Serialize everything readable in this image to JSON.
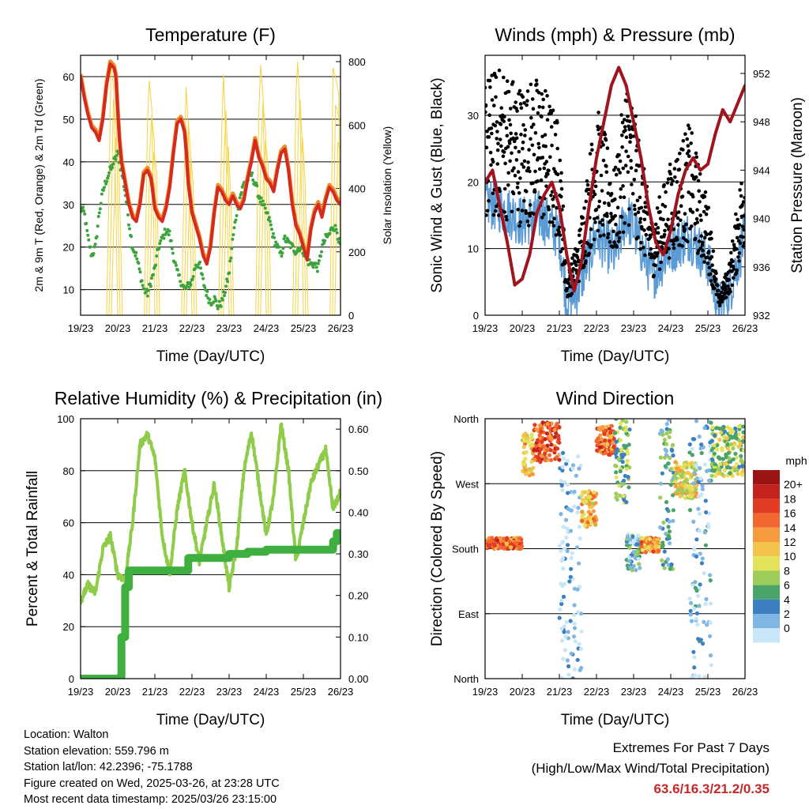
{
  "chart_data": [
    {
      "type": "line",
      "title": "Temperature (F)",
      "xlabel": "Time (Day/UTC)",
      "ylabel": "2m & 9m T (Red, Orange) & 2m Td (Green)",
      "y2label": "Solar Insolation (Yellow)",
      "x_ticks": [
        "19/23",
        "20/23",
        "21/23",
        "22/23",
        "23/23",
        "24/23",
        "25/23",
        "26/23"
      ],
      "ylim": [
        4,
        65
      ],
      "y_ticks": [
        10,
        20,
        30,
        40,
        50,
        60
      ],
      "y2lim": [
        0,
        820
      ],
      "y2_ticks": [
        0,
        200,
        400,
        600,
        800
      ],
      "colors": {
        "temp2m": "#d42a20",
        "temp9m": "#f08a2a",
        "dewpoint": "#3da33d",
        "solar": "#f5d442"
      },
      "series": [
        {
          "name": "2m T",
          "axis": "left",
          "x": [
            0,
            0.1,
            0.2,
            0.3,
            0.4,
            0.5,
            0.6,
            0.7,
            0.8,
            0.9,
            0.95,
            1.0,
            1.05,
            1.1,
            1.2,
            1.3,
            1.4,
            1.5,
            1.6,
            1.7,
            1.8,
            1.9,
            2.0,
            2.1,
            2.2,
            2.3,
            2.4,
            2.5,
            2.6,
            2.7,
            2.8,
            2.85,
            2.9,
            3.0,
            3.1,
            3.2,
            3.3,
            3.4,
            3.5,
            3.6,
            3.7,
            3.8,
            3.9,
            4.0,
            4.1,
            4.2,
            4.3,
            4.4,
            4.5,
            4.6,
            4.7,
            4.8,
            4.9,
            5.0,
            5.1,
            5.2,
            5.3,
            5.4,
            5.5,
            5.6,
            5.7,
            5.8,
            5.9,
            6.0,
            6.1,
            6.2,
            6.3,
            6.4,
            6.5,
            6.6,
            6.7,
            6.8,
            6.9,
            7.0
          ],
          "values": [
            60,
            55,
            51,
            48,
            47,
            45,
            50,
            58,
            63,
            62,
            60,
            52,
            45,
            40,
            35,
            30,
            27,
            26,
            30,
            37,
            38,
            36,
            29,
            27,
            26,
            29,
            34,
            42,
            49,
            50,
            47,
            42,
            35,
            28,
            25,
            22,
            18,
            16,
            20,
            28,
            34,
            33,
            31,
            30,
            32,
            30,
            29,
            31,
            36,
            40,
            45,
            41,
            39,
            36,
            35,
            33,
            38,
            42,
            43,
            38,
            30,
            25,
            23,
            20,
            17,
            24,
            28,
            30,
            27,
            31,
            34,
            33,
            31,
            30
          ]
        },
        {
          "name": "Td",
          "axis": "left",
          "x": [
            0,
            0.1,
            0.2,
            0.3,
            0.4,
            0.5,
            0.6,
            0.7,
            0.8,
            0.9,
            1.0,
            1.1,
            1.2,
            1.3,
            1.4,
            1.5,
            1.6,
            1.7,
            1.8,
            1.9,
            2.0,
            2.1,
            2.2,
            2.3,
            2.4,
            2.5,
            2.6,
            2.7,
            2.8,
            2.9,
            3.0,
            3.1,
            3.2,
            3.3,
            3.4,
            3.5,
            3.6,
            3.7,
            3.8,
            3.9,
            4.0,
            4.1,
            4.2,
            4.3,
            4.4,
            4.5,
            4.6,
            4.7,
            4.8,
            4.9,
            5.0,
            5.1,
            5.2,
            5.3,
            5.4,
            5.5,
            5.6,
            5.7,
            5.8,
            5.9,
            6.0,
            6.1,
            6.2,
            6.3,
            6.4,
            6.5,
            6.6,
            6.7,
            6.8,
            6.9,
            7.0
          ],
          "values": [
            29,
            28,
            22,
            18,
            20,
            28,
            33,
            36,
            38,
            40,
            42,
            38,
            33,
            26,
            20,
            18,
            14,
            10,
            9,
            12,
            15,
            20,
            22,
            24,
            23,
            18,
            14,
            12,
            10,
            11,
            12,
            16,
            16,
            12,
            9,
            7,
            8,
            6,
            7,
            10,
            14,
            22,
            28,
            32,
            35,
            36,
            37,
            35,
            32,
            30,
            28,
            26,
            22,
            20,
            18,
            22,
            21,
            20,
            19,
            20,
            19,
            17,
            16,
            16,
            15,
            20,
            22,
            23,
            25,
            24,
            20
          ]
        },
        {
          "name": "Solar",
          "axis": "right",
          "x": [
            0.7,
            0.78,
            0.82,
            0.9,
            1.0,
            1.72,
            1.8,
            1.85,
            1.92,
            2.0,
            2.72,
            2.8,
            2.84,
            2.9,
            3.0,
            3.72,
            3.8,
            3.85,
            3.92,
            4.0,
            4.72,
            4.8,
            4.85,
            4.92,
            5.0,
            5.72,
            5.8,
            5.85,
            5.92,
            6.0,
            6.72,
            6.8,
            6.85,
            6.95,
            7.0
          ],
          "values": [
            0,
            500,
            800,
            700,
            0,
            0,
            600,
            740,
            650,
            0,
            0,
            500,
            720,
            600,
            0,
            0,
            580,
            760,
            520,
            0,
            0,
            640,
            790,
            680,
            0,
            0,
            700,
            800,
            600,
            0,
            0,
            780,
            760,
            700,
            0
          ]
        }
      ]
    },
    {
      "type": "scatter",
      "title": "Winds (mph) & Pressure (mb)",
      "xlabel": "Time (Day/UTC)",
      "ylabel": "Sonic Wind & Gust (Blue, Black)",
      "y2label": "Station Pressure (Maroon)",
      "x_ticks": [
        "19/23",
        "20/23",
        "21/23",
        "22/23",
        "23/23",
        "24/23",
        "25/23",
        "26/23"
      ],
      "ylim": [
        0,
        39
      ],
      "y_ticks": [
        0,
        10,
        20,
        30
      ],
      "y2lim": [
        932,
        953.5
      ],
      "y2_ticks": [
        932,
        936,
        940,
        944,
        948,
        952
      ],
      "colors": {
        "wind": "#5b9bd5",
        "gust": "#000000",
        "pressure": "#a0141e"
      },
      "series": [
        {
          "name": "Wind",
          "x": [
            0,
            0.5,
            1.0,
            1.5,
            2.0,
            2.2,
            2.5,
            3.0,
            3.5,
            3.8,
            4.0,
            4.5,
            5.0,
            5.5,
            6.0,
            6.3,
            6.6,
            7.0
          ],
          "values": [
            17,
            16,
            14,
            15,
            12,
            2,
            4,
            12,
            9,
            15,
            13,
            6,
            10,
            12,
            8,
            1,
            4,
            12
          ]
        },
        {
          "name": "Gust",
          "x": [
            0,
            0.5,
            1.0,
            1.5,
            2.0,
            2.2,
            2.5,
            3.0,
            3.5,
            3.8,
            4.0,
            4.5,
            5.0,
            5.5,
            6.0,
            6.3,
            6.6,
            7.0
          ],
          "values": [
            25,
            26,
            24,
            25,
            20,
            4,
            8,
            22,
            15,
            25,
            22,
            10,
            16,
            20,
            12,
            2,
            6,
            18
          ]
        },
        {
          "name": "Pressure",
          "axis": "right",
          "x": [
            0,
            0.2,
            0.4,
            0.6,
            0.8,
            1.0,
            1.2,
            1.4,
            1.6,
            1.8,
            2.0,
            2.2,
            2.4,
            2.6,
            2.8,
            3.0,
            3.2,
            3.4,
            3.6,
            3.8,
            4.0,
            4.2,
            4.4,
            4.6,
            4.8,
            5.0,
            5.2,
            5.4,
            5.6,
            5.8,
            6.0,
            6.2,
            6.4,
            6.6,
            6.8,
            7.0
          ],
          "values": [
            943,
            944,
            941,
            938,
            934.5,
            935,
            937,
            940.5,
            942,
            943,
            941,
            937,
            934,
            936.5,
            941,
            945,
            948,
            951,
            952.5,
            951,
            948,
            945,
            941,
            938,
            937,
            939,
            942,
            944,
            945,
            944,
            944.5,
            947,
            949,
            948,
            949.5,
            951
          ]
        }
      ]
    },
    {
      "type": "line",
      "title": "Relative Humidity (%) & Precipitation (in)",
      "xlabel": "Time (Day/UTC)",
      "ylabel": "Percent & Total Rainfall",
      "x_ticks": [
        "19/23",
        "20/23",
        "21/23",
        "22/23",
        "23/23",
        "24/23",
        "25/23",
        "26/23"
      ],
      "ylim": [
        0,
        100
      ],
      "y_ticks": [
        0,
        20,
        40,
        60,
        80,
        100
      ],
      "y2lim": [
        0,
        0.625
      ],
      "y2_ticks": [
        "0.00",
        "0.10",
        "0.20",
        "0.30",
        "0.40",
        "0.50",
        "0.60"
      ],
      "colors": {
        "rh": "#8fcc4a",
        "precip": "#3fb03f"
      },
      "series": [
        {
          "name": "RH",
          "x": [
            0,
            0.2,
            0.4,
            0.6,
            0.8,
            1.0,
            1.2,
            1.4,
            1.6,
            1.8,
            2.0,
            2.2,
            2.4,
            2.6,
            2.8,
            3.0,
            3.2,
            3.4,
            3.6,
            3.8,
            4.0,
            4.2,
            4.4,
            4.6,
            4.8,
            5.0,
            5.2,
            5.4,
            5.6,
            5.8,
            6.0,
            6.2,
            6.4,
            6.6,
            6.8,
            7.0
          ],
          "values": [
            30,
            36,
            33,
            50,
            55,
            40,
            38,
            60,
            90,
            94,
            85,
            55,
            40,
            65,
            80,
            60,
            45,
            60,
            75,
            55,
            35,
            50,
            80,
            95,
            75,
            55,
            70,
            98,
            80,
            45,
            60,
            75,
            82,
            88,
            65,
            72
          ]
        },
        {
          "name": "Precip",
          "axis": "right",
          "x": [
            0,
            1.0,
            1.1,
            1.2,
            1.3,
            1.5,
            2.0,
            2.5,
            2.8,
            2.9,
            3.5,
            4.0,
            4.5,
            5.0,
            5.5,
            6.0,
            6.5,
            6.8,
            6.9,
            7.0
          ],
          "values": [
            0,
            0,
            0.1,
            0.22,
            0.26,
            0.26,
            0.26,
            0.26,
            0.26,
            0.29,
            0.29,
            0.3,
            0.305,
            0.31,
            0.31,
            0.31,
            0.31,
            0.33,
            0.35,
            0.35
          ]
        }
      ]
    },
    {
      "type": "scatter",
      "title": "Wind Direction",
      "xlabel": "Time (Day/UTC)",
      "ylabel": "Direction (Colored By Speed)",
      "x_ticks": [
        "19/23",
        "20/23",
        "21/23",
        "22/23",
        "23/23",
        "24/23",
        "25/23",
        "26/23"
      ],
      "y_ticks": [
        "North",
        "West",
        "South",
        "East",
        "North"
      ],
      "legend_title": "mph",
      "legend_labels": [
        "20+",
        "18",
        "16",
        "14",
        "12",
        "10",
        "8",
        "6",
        "4",
        "2",
        "0"
      ],
      "legend_colors": [
        "#9b1414",
        "#c4221e",
        "#e23b24",
        "#f2672f",
        "#f79a3e",
        "#f3c44a",
        "#e3e35a",
        "#9dcc5a",
        "#4aa46a",
        "#3c80c2",
        "#7fb6e3",
        "#c7e6f7"
      ],
      "clusters": [
        {
          "x": [
            0,
            1.0
          ],
          "dir": [
            180,
            195
          ],
          "speed": 16
        },
        {
          "x": [
            1.0,
            1.3
          ],
          "dir": [
            280,
            340
          ],
          "speed": 12
        },
        {
          "x": [
            1.3,
            2.0
          ],
          "dir": [
            300,
            355
          ],
          "speed": 17
        },
        {
          "x": [
            2.0,
            2.6
          ],
          "dir": [
            0,
            320
          ],
          "speed": 1
        },
        {
          "x": [
            2.6,
            3.0
          ],
          "dir": [
            210,
            260
          ],
          "speed": 12
        },
        {
          "x": [
            3.0,
            3.5
          ],
          "dir": [
            310,
            350
          ],
          "speed": 16
        },
        {
          "x": [
            3.5,
            3.9
          ],
          "dir": [
            240,
            360
          ],
          "speed": 7
        },
        {
          "x": [
            3.8,
            4.2
          ],
          "dir": [
            150,
            200
          ],
          "speed": 4
        },
        {
          "x": [
            4.2,
            4.7
          ],
          "dir": [
            175,
            195
          ],
          "speed": 14
        },
        {
          "x": [
            4.7,
            5.1
          ],
          "dir": [
            150,
            360
          ],
          "speed": 5
        },
        {
          "x": [
            5.1,
            5.7
          ],
          "dir": [
            250,
            300
          ],
          "speed": 11
        },
        {
          "x": [
            5.5,
            6.1
          ],
          "dir": [
            0,
            360
          ],
          "speed": 2
        },
        {
          "x": [
            6.1,
            7.0
          ],
          "dir": [
            280,
            350
          ],
          "speed": 8
        }
      ]
    }
  ],
  "info": {
    "location": "Location: Walton",
    "elevation": "Station elevation: 559.796 m",
    "latlon": "Station lat/lon: 42.2396; -75.1788",
    "created": "Figure created on Wed, 2025-03-26, at 23:28 UTC",
    "recent": "Most recent data timestamp: 2025/03/26 23:15:00"
  },
  "extremes": {
    "title": "Extremes For Past 7 Days",
    "subtitle": "(High/Low/Max Wind/Total Precipitation)",
    "values": "63.6/16.3/21.2/0.35"
  }
}
